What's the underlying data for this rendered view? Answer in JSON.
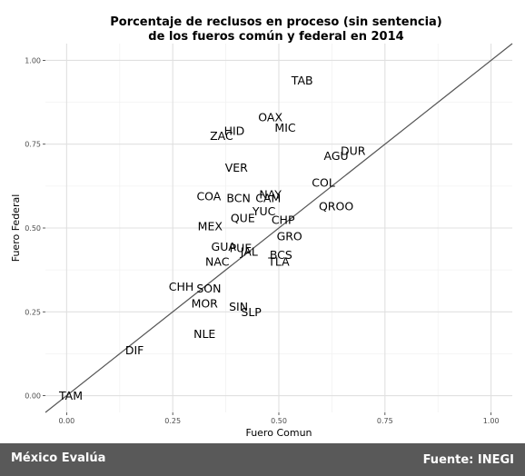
{
  "chart_data": {
    "type": "scatter",
    "title": [
      "Porcentaje de reclusos en proceso (sin sentencia)",
      "de los fueros común y federal en 2014"
    ],
    "xlabel": "Fuero Comun",
    "ylabel": "Fuero Federal",
    "xlim": [
      -0.05,
      1.05
    ],
    "ylim": [
      -0.05,
      1.05
    ],
    "x_ticks": [
      "0.00",
      "0.25",
      "0.50",
      "0.75",
      "1.00"
    ],
    "y_ticks": [
      "0.00",
      "0.25",
      "0.50",
      "0.75",
      "1.00"
    ],
    "grid": true,
    "reference_line": "y = x",
    "points": [
      {
        "label": "TAB",
        "x": 0.555,
        "y": 0.94
      },
      {
        "label": "OAX",
        "x": 0.48,
        "y": 0.83
      },
      {
        "label": "MIC",
        "x": 0.515,
        "y": 0.8
      },
      {
        "label": "HID",
        "x": 0.395,
        "y": 0.79
      },
      {
        "label": "ZAC",
        "x": 0.365,
        "y": 0.775
      },
      {
        "label": "DUR",
        "x": 0.675,
        "y": 0.73
      },
      {
        "label": "AGU",
        "x": 0.635,
        "y": 0.715
      },
      {
        "label": "VER",
        "x": 0.4,
        "y": 0.68
      },
      {
        "label": "COL",
        "x": 0.605,
        "y": 0.635
      },
      {
        "label": "NAY",
        "x": 0.48,
        "y": 0.6
      },
      {
        "label": "CAM",
        "x": 0.475,
        "y": 0.59
      },
      {
        "label": "COA",
        "x": 0.335,
        "y": 0.595
      },
      {
        "label": "BCN",
        "x": 0.405,
        "y": 0.59
      },
      {
        "label": "QROO",
        "x": 0.635,
        "y": 0.565
      },
      {
        "label": "YUC",
        "x": 0.465,
        "y": 0.55
      },
      {
        "label": "QUE",
        "x": 0.415,
        "y": 0.53
      },
      {
        "label": "CHP",
        "x": 0.51,
        "y": 0.525
      },
      {
        "label": "MEX",
        "x": 0.338,
        "y": 0.505
      },
      {
        "label": "GRO",
        "x": 0.525,
        "y": 0.475
      },
      {
        "label": "GUA",
        "x": 0.37,
        "y": 0.445
      },
      {
        "label": "PUE",
        "x": 0.41,
        "y": 0.44
      },
      {
        "label": "JAL",
        "x": 0.43,
        "y": 0.43
      },
      {
        "label": "BCS",
        "x": 0.505,
        "y": 0.42
      },
      {
        "label": "TLA",
        "x": 0.5,
        "y": 0.4
      },
      {
        "label": "NAC",
        "x": 0.355,
        "y": 0.4
      },
      {
        "label": "CHH",
        "x": 0.27,
        "y": 0.325
      },
      {
        "label": "SON",
        "x": 0.335,
        "y": 0.32
      },
      {
        "label": "MOR",
        "x": 0.325,
        "y": 0.275
      },
      {
        "label": "SIN",
        "x": 0.405,
        "y": 0.265
      },
      {
        "label": "SLP",
        "x": 0.435,
        "y": 0.25
      },
      {
        "label": "NLE",
        "x": 0.325,
        "y": 0.185
      },
      {
        "label": "DIF",
        "x": 0.16,
        "y": 0.135
      },
      {
        "label": "TAM",
        "x": 0.01,
        "y": 0.0
      }
    ]
  },
  "footer": {
    "left": "México Evalúa",
    "right": "Fuente: INEGI"
  }
}
